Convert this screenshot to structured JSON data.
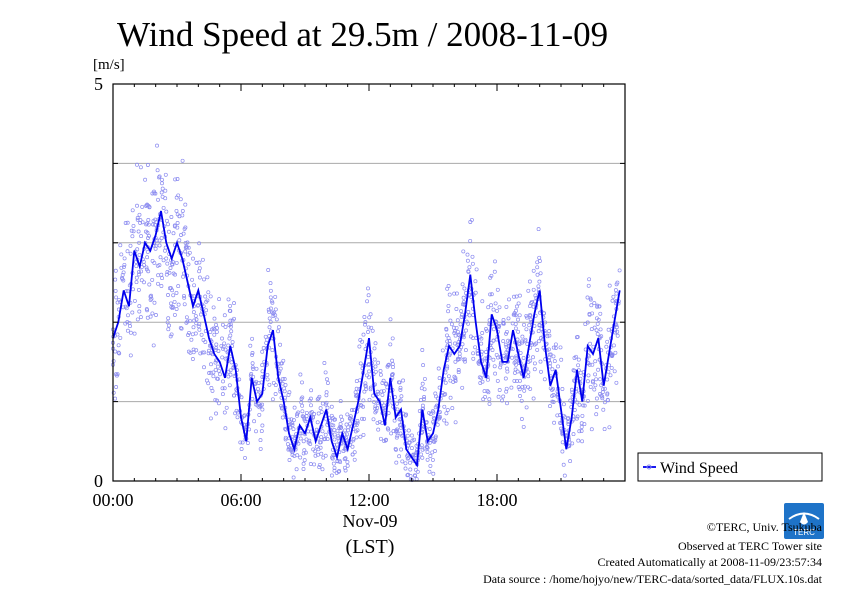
{
  "chart_data": {
    "type": "line",
    "title": "Wind Speed at 29.5m / 2008-11-09",
    "ylabel": "[m/s]",
    "xlabel_date": "Nov-09",
    "xlabel_tz": "(LST)",
    "x_unit": "hours (LST)",
    "xlim": [
      0,
      24
    ],
    "ylim": [
      0,
      5
    ],
    "x_ticks": [
      {
        "x": 0,
        "label": "00:00"
      },
      {
        "x": 6,
        "label": "06:00"
      },
      {
        "x": 12,
        "label": "12:00"
      },
      {
        "x": 18,
        "label": "18:00"
      }
    ],
    "y_ticks": [
      {
        "y": 0,
        "label": "0"
      },
      {
        "y": 5,
        "label": "5"
      }
    ],
    "y_gridlines": [
      1,
      2,
      3,
      4
    ],
    "grid": true,
    "legend_position": "right, bottom",
    "series": [
      {
        "name": "Wind Speed",
        "color": "#0000ee",
        "scatter_color": "#8c8cf0",
        "x": [
          0.0,
          0.25,
          0.5,
          0.75,
          1.0,
          1.25,
          1.5,
          1.75,
          2.0,
          2.25,
          2.5,
          2.75,
          3.0,
          3.25,
          3.5,
          3.75,
          4.0,
          4.25,
          4.5,
          4.75,
          5.0,
          5.25,
          5.5,
          5.75,
          6.0,
          6.25,
          6.5,
          6.75,
          7.0,
          7.25,
          7.5,
          7.75,
          8.0,
          8.25,
          8.5,
          8.75,
          9.0,
          9.25,
          9.5,
          9.75,
          10.0,
          10.25,
          10.5,
          10.75,
          11.0,
          11.25,
          11.5,
          11.75,
          12.0,
          12.25,
          12.5,
          12.75,
          13.0,
          13.25,
          13.5,
          13.75,
          14.0,
          14.25,
          14.5,
          14.75,
          15.0,
          15.25,
          15.5,
          15.75,
          16.0,
          16.25,
          16.5,
          16.75,
          17.0,
          17.25,
          17.5,
          17.75,
          18.0,
          18.25,
          18.5,
          18.75,
          19.0,
          19.25,
          19.5,
          19.75,
          20.0,
          20.25,
          20.5,
          20.75,
          21.0,
          21.25,
          21.5,
          21.75,
          22.0,
          22.25,
          22.5,
          22.75,
          23.0,
          23.25,
          23.5,
          23.75
        ],
        "values": [
          1.8,
          2.0,
          2.4,
          2.2,
          2.9,
          2.7,
          3.0,
          2.9,
          3.1,
          3.4,
          3.0,
          2.8,
          3.0,
          2.8,
          2.5,
          2.2,
          2.4,
          2.1,
          1.8,
          1.6,
          1.5,
          1.3,
          1.7,
          1.4,
          0.8,
          0.5,
          1.3,
          1.0,
          1.1,
          1.7,
          1.9,
          1.3,
          1.0,
          0.6,
          0.4,
          0.7,
          0.6,
          0.8,
          0.5,
          0.7,
          0.9,
          0.5,
          0.3,
          0.6,
          0.4,
          0.7,
          1.0,
          1.4,
          1.8,
          1.1,
          1.0,
          0.7,
          1.3,
          0.8,
          0.9,
          0.4,
          0.3,
          0.2,
          0.9,
          0.5,
          0.6,
          0.9,
          1.4,
          1.7,
          1.6,
          1.7,
          2.1,
          2.6,
          2.0,
          1.5,
          1.3,
          2.1,
          1.9,
          1.5,
          1.5,
          1.9,
          1.6,
          1.3,
          1.7,
          2.1,
          2.4,
          1.7,
          1.2,
          1.4,
          0.9,
          0.4,
          0.8,
          1.4,
          1.0,
          1.7,
          1.6,
          1.8,
          1.2,
          1.6,
          2.0,
          2.4
        ]
      }
    ]
  },
  "credits": {
    "copyright": "©TERC, Univ. Tsukuba",
    "site": "Observed at TERC Tower site",
    "created": "Created Automatically at 2008-11-09/23:57:34",
    "source": "Data source : /home/hojyo/new/TERC-data/sorted_data/FLUX.10s.dat"
  },
  "logo": {
    "text": "TERC",
    "color": "#1e73c8"
  }
}
